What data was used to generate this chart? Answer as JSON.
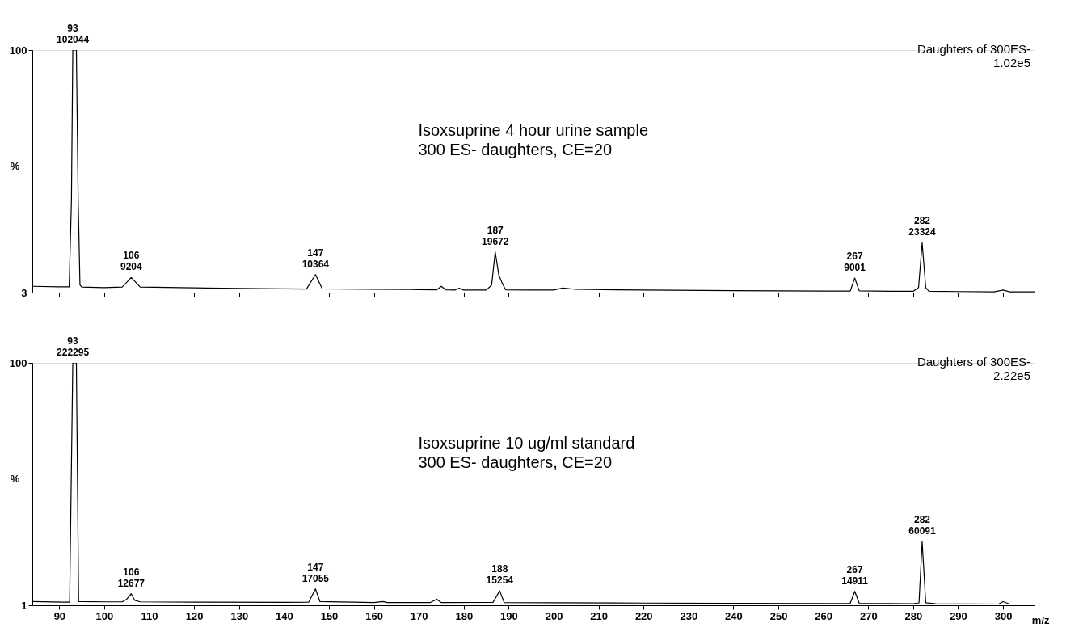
{
  "chart_data": [
    {
      "type": "line",
      "title": "Isoxsuprine 4 hour urine sample",
      "subtitle": "300 ES- daughters, CE=20",
      "ylabel": "%",
      "grid": false,
      "tick_labels": "y",
      "x": [
        84,
        90,
        92.2,
        92.7,
        93.0,
        93.8,
        94.2,
        94.6,
        95,
        100,
        104,
        106,
        108,
        120,
        130,
        140,
        145,
        147,
        148.5,
        160,
        170,
        174,
        175,
        176,
        178,
        179,
        180,
        185,
        186.2,
        187,
        187.8,
        188.5,
        189.3,
        195,
        200,
        202,
        205,
        220,
        240,
        260,
        266,
        267,
        268,
        275,
        280,
        281.2,
        282,
        282.8,
        283.5,
        290,
        298,
        300,
        301.5,
        307
      ],
      "series": [
        {
          "color": "#000000",
          "values": [
            5.5,
            5.3,
            5.3,
            40,
            100,
            100,
            40,
            6,
            5.2,
            5.0,
            5.2,
            9.0,
            5.2,
            4.9,
            4.7,
            4.5,
            4.4,
            10.2,
            4.5,
            4.3,
            4.2,
            4.1,
            5.5,
            4.1,
            4.0,
            4.8,
            4.0,
            4.0,
            6,
            19.3,
            10,
            7,
            4.1,
            4.0,
            4.0,
            4.8,
            4.3,
            4.0,
            3.8,
            3.6,
            3.6,
            8.8,
            3.7,
            3.5,
            3.5,
            5,
            22.9,
            5,
            3.5,
            3.4,
            3.3,
            4.0,
            3.3,
            3.3
          ]
        }
      ],
      "xlim": [
        84,
        307
      ],
      "xticks": [
        90,
        100,
        110,
        120,
        130,
        140,
        150,
        160,
        170,
        180,
        190,
        200,
        210,
        220,
        230,
        240,
        250,
        260,
        270,
        280,
        290,
        300
      ],
      "ylim": [
        3,
        100
      ],
      "yticks": [
        3,
        100
      ],
      "annotations": [
        "Daughters of 300ES-\n1.02e5",
        {
          "text": "93\n102044",
          "x": 93,
          "y": 100
        },
        {
          "text": "106\n9204",
          "x": 106,
          "y": 9.0
        },
        {
          "text": "147\n10364",
          "x": 147,
          "y": 10.2
        },
        {
          "text": "187\n19672",
          "x": 187,
          "y": 19.3
        },
        {
          "text": "267\n9001",
          "x": 267,
          "y": 8.8
        },
        {
          "text": "282\n23324",
          "x": 282,
          "y": 22.9
        }
      ]
    },
    {
      "type": "line",
      "title": "Isoxsuprine 10 ug/ml standard",
      "subtitle": "300 ES- daughters, CE=20",
      "ylabel": "%",
      "xlabel": "m/z",
      "grid": false,
      "x": [
        84,
        91,
        92.3,
        93.0,
        93.8,
        94.3,
        100,
        104,
        105,
        106,
        106.8,
        108,
        120,
        140,
        145.5,
        147,
        148,
        160,
        162,
        163,
        172.5,
        174,
        175,
        186.5,
        188,
        189,
        200,
        220,
        240,
        260,
        266,
        267,
        268,
        280,
        281.3,
        282,
        282.8,
        285,
        299,
        300,
        301.5,
        307
      ],
      "series": [
        {
          "color": "#000000",
          "values": [
            2.5,
            2.3,
            2.3,
            100,
            100,
            2.5,
            2.4,
            2.4,
            3.5,
            5.7,
            3,
            2.4,
            2.3,
            2.2,
            2.3,
            7.7,
            2.5,
            2.1,
            2.5,
            2.1,
            2.1,
            3.5,
            2.1,
            2.2,
            6.9,
            2.1,
            2.0,
            1.9,
            1.8,
            1.7,
            1.8,
            6.7,
            1.8,
            1.6,
            2,
            27.0,
            2,
            1.6,
            1.5,
            2.5,
            1.5,
            1.5
          ]
        }
      ],
      "xlim": [
        84,
        307
      ],
      "xticks": [
        90,
        100,
        110,
        120,
        130,
        140,
        150,
        160,
        170,
        180,
        190,
        200,
        210,
        220,
        230,
        240,
        250,
        260,
        270,
        280,
        290,
        300
      ],
      "ylim": [
        1,
        100
      ],
      "yticks": [
        1,
        100
      ],
      "annotations": [
        "Daughters of 300ES-\n2.22e5",
        {
          "text": "93\n222295",
          "x": 93,
          "y": 100
        },
        {
          "text": "106\n12677",
          "x": 106,
          "y": 5.7
        },
        {
          "text": "147\n17055",
          "x": 147,
          "y": 7.7
        },
        {
          "text": "188\n15254",
          "x": 188,
          "y": 6.9
        },
        {
          "text": "267\n14911",
          "x": 267,
          "y": 6.7
        },
        {
          "text": "282\n60091",
          "x": 282,
          "y": 27.0
        }
      ]
    }
  ]
}
